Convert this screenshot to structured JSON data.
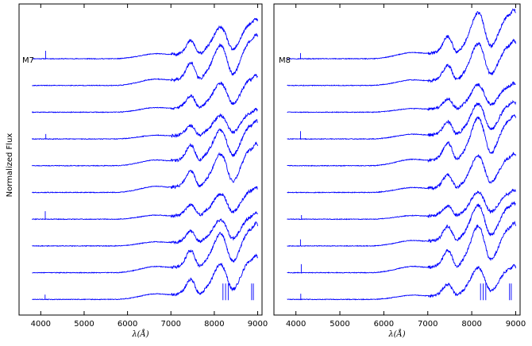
{
  "figure": {
    "ylabel": "Normalized Flux"
  },
  "chart_data": [
    {
      "type": "line",
      "panel_label": "M7",
      "xlabel": "λ(Å)",
      "ylabel": "Normalized Flux",
      "xlim": [
        3500,
        9100
      ],
      "xticks": [
        4000,
        5000,
        6000,
        7000,
        8000,
        9000
      ],
      "xtick_labels": [
        "4000",
        "5000",
        "6000",
        "7000",
        "8000",
        "9000"
      ],
      "series_count": 10,
      "color": "#0000ff",
      "x_start": 3800,
      "x_end": 9000
    },
    {
      "type": "line",
      "panel_label": "M8",
      "xlabel": "λ(Å)",
      "ylabel": "",
      "xlim": [
        3500,
        9100
      ],
      "xticks": [
        4000,
        5000,
        6000,
        7000,
        8000,
        9000
      ],
      "xtick_labels": [
        "4000",
        "5000",
        "6000",
        "7000",
        "8000",
        "9000"
      ],
      "series_count": 10,
      "color": "#0000ff",
      "x_start": 3800,
      "x_end": 9000
    }
  ]
}
